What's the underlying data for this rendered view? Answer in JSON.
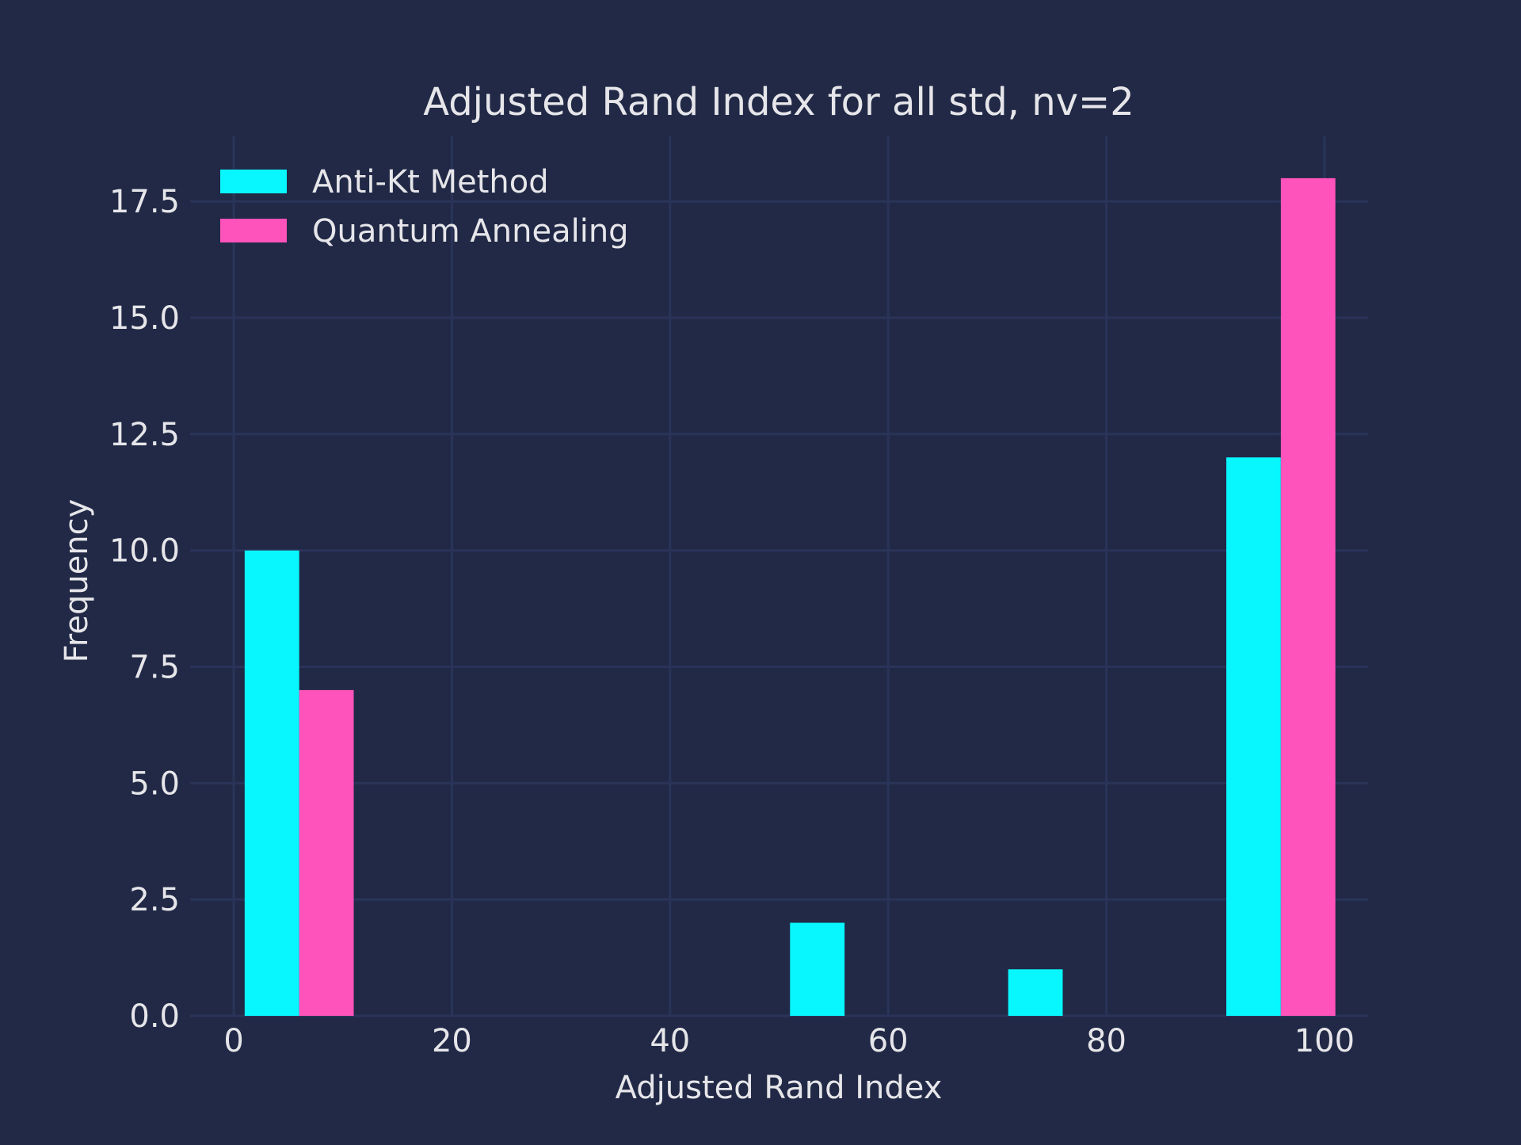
{
  "colors": {
    "background": "#212946",
    "grid": "#2a3459",
    "text": "#e6e6ea",
    "anti_kt": "#08F7FE",
    "quantum": "#FE53BB"
  },
  "chart_data": {
    "type": "bar",
    "title": "Adjusted Rand Index for all std, nv=2",
    "xlabel": "Adjusted Rand Index",
    "ylabel": "Frequency",
    "xlim": [
      -4,
      104
    ],
    "ylim": [
      0,
      18.9
    ],
    "xticks": [
      0,
      20,
      40,
      60,
      80,
      100
    ],
    "xtick_labels": [
      "0",
      "20",
      "40",
      "60",
      "80",
      "100"
    ],
    "yticks": [
      0,
      2.5,
      5,
      7.5,
      10,
      12.5,
      15,
      17.5
    ],
    "ytick_labels": [
      "0.0",
      "2.5",
      "5.0",
      "7.5",
      "10.0",
      "12.5",
      "15.0",
      "17.5"
    ],
    "grid": true,
    "legend_position": "top-left",
    "bin_edges": [
      1,
      11,
      21,
      31,
      41,
      51,
      61,
      71,
      81,
      91,
      101
    ],
    "series": [
      {
        "name": "Anti-Kt Method",
        "color": "#08F7FE",
        "values": [
          10,
          0,
          0,
          0,
          0,
          2,
          0,
          1,
          0,
          12
        ]
      },
      {
        "name": "Quantum Annealing",
        "color": "#FE53BB",
        "values": [
          7,
          0,
          0,
          0,
          0,
          0,
          0,
          0,
          0,
          18
        ]
      }
    ]
  }
}
